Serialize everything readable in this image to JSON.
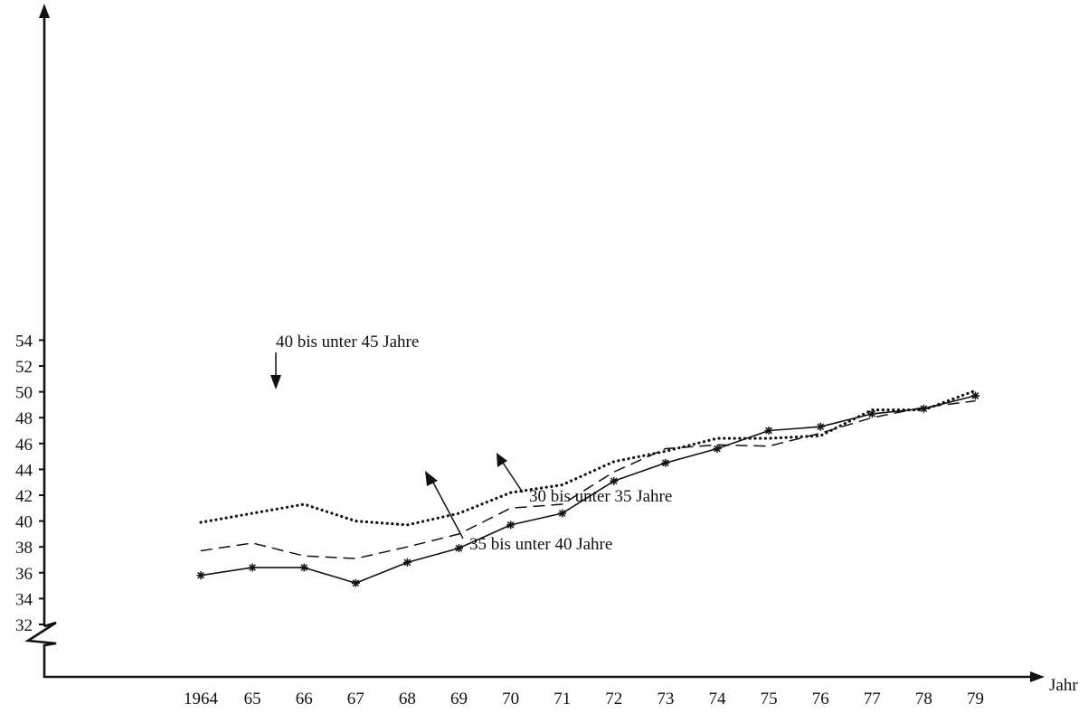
{
  "chart_data": {
    "type": "line",
    "title": "",
    "xlabel": "Jahr",
    "ylabel": "",
    "x": [
      "1964",
      "65",
      "66",
      "67",
      "68",
      "69",
      "70",
      "71",
      "72",
      "73",
      "74",
      "75",
      "76",
      "77",
      "78",
      "79"
    ],
    "yticks": [
      "32",
      "34",
      "36",
      "38",
      "40",
      "42",
      "44",
      "46",
      "48",
      "50",
      "52",
      "54"
    ],
    "ylim": [
      32,
      55
    ],
    "axis_break": true,
    "grid": false,
    "series": [
      {
        "name": "40 bis unter 45 Jahre",
        "style": "dotted",
        "values": [
          39.9,
          40.6,
          41.3,
          40.0,
          39.7,
          40.6,
          42.2,
          42.8,
          44.6,
          45.4,
          46.4,
          46.4,
          46.6,
          48.6,
          48.6,
          50.1
        ]
      },
      {
        "name": "35 bis unter 40 Jahre",
        "style": "solid-star",
        "values": [
          35.8,
          36.4,
          36.4,
          35.2,
          36.8,
          37.9,
          39.7,
          40.6,
          43.1,
          44.5,
          45.6,
          47.0,
          47.3,
          48.3,
          48.7,
          49.7
        ]
      },
      {
        "name": "30 bis unter 35 Jahre",
        "style": "dashed",
        "values": [
          37.7,
          38.3,
          37.3,
          37.1,
          38.0,
          39.0,
          41.0,
          41.3,
          43.8,
          45.6,
          45.9,
          45.8,
          46.8,
          48.0,
          48.8,
          49.3
        ]
      }
    ],
    "annotations": [
      {
        "text": "40 bis unter 45 Jahre",
        "series": 0
      },
      {
        "text": "30 bis unter 35 Jahre",
        "series": 2
      },
      {
        "text": "35 bis unter 40 Jahre",
        "series": 1
      }
    ]
  }
}
